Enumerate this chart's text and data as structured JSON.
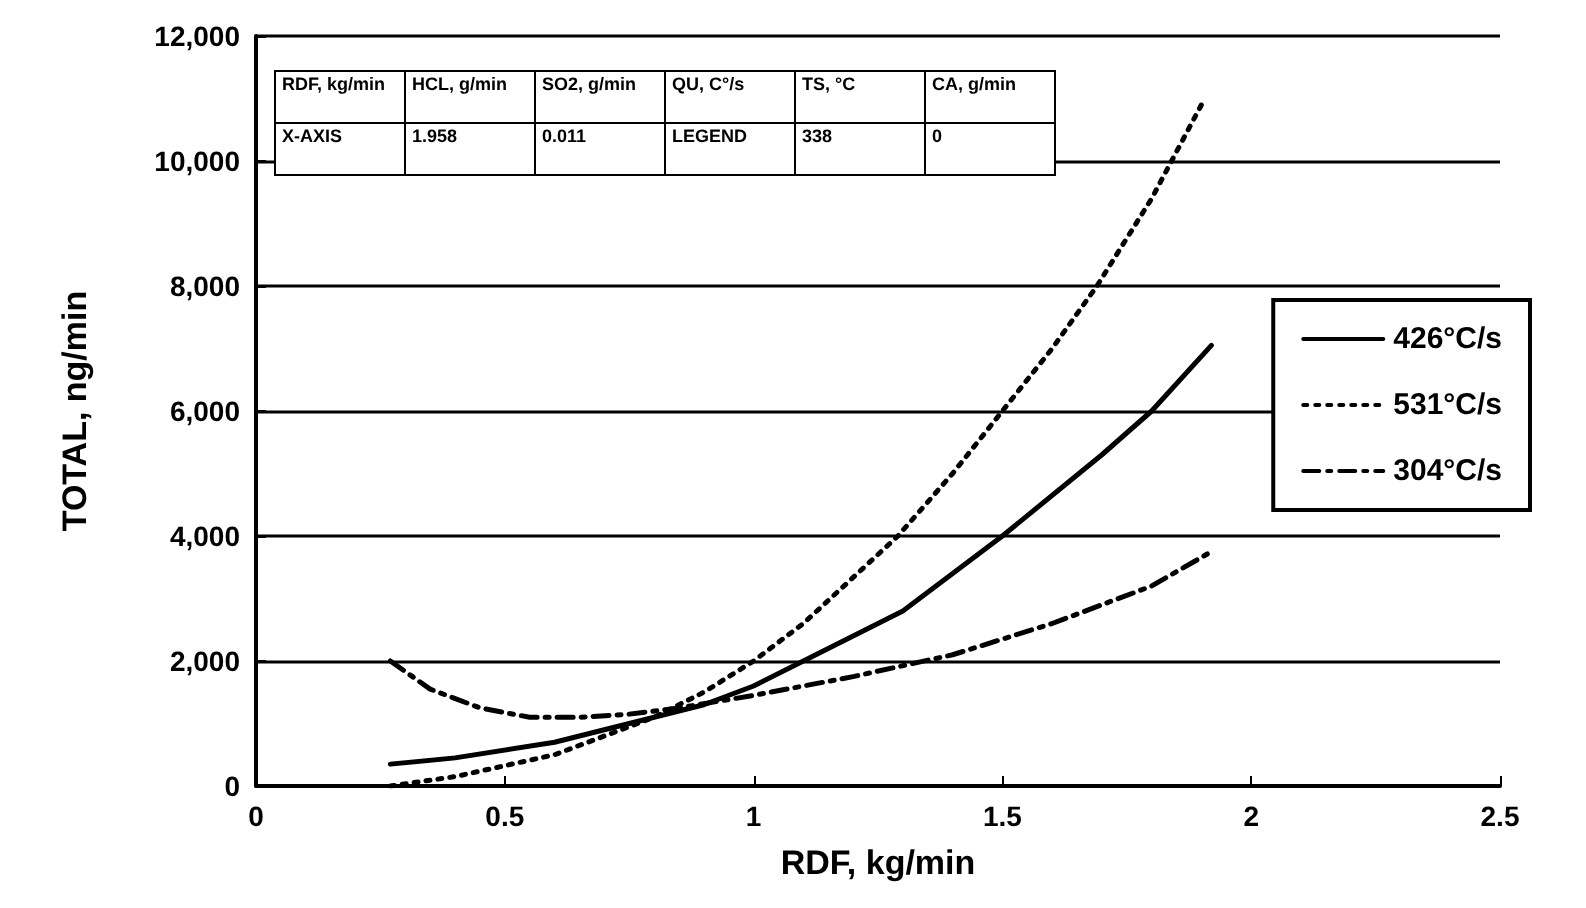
{
  "chart_data": {
    "type": "line",
    "xlabel": "RDF, kg/min",
    "ylabel": "TOTAL, ng/min",
    "xlim": [
      0,
      2.5
    ],
    "xticks": [
      0,
      0.5,
      1,
      1.5,
      2,
      2.5
    ],
    "ylim": [
      0,
      12000
    ],
    "yticks": [
      {
        "value": 0,
        "label": "0"
      },
      {
        "value": 2000,
        "label": "2,000"
      },
      {
        "value": 4000,
        "label": "4,000"
      },
      {
        "value": 6000,
        "label": "6,000"
      },
      {
        "value": 8000,
        "label": "8,000"
      },
      {
        "value": 10000,
        "label": "10,000"
      },
      {
        "value": 12000,
        "label": "12,000"
      }
    ],
    "grid": "y",
    "legend": "right",
    "marker": "none",
    "annotations": [
      "RDF, kg/min",
      "HCL, g/min",
      "SO2, g/min",
      "QU, C°/s",
      "TS, °C",
      "CA, g/min",
      "X-AXIS",
      "1.958",
      "0.011",
      "LEGEND",
      "338",
      "0"
    ],
    "series": [
      {
        "name": "426°C/s",
        "color": "#000000",
        "line_style": "solid",
        "x": [
          0.27,
          0.4,
          0.6,
          0.8,
          0.9,
          1.0,
          1.1,
          1.3,
          1.5,
          1.7,
          1.8,
          1.92
        ],
        "values": [
          350,
          450,
          700,
          1100,
          1300,
          1600,
          2000,
          2800,
          4000,
          5300,
          6000,
          7050
        ]
      },
      {
        "name": "531°C/s",
        "color": "#000000",
        "line_style": "dotted",
        "x": [
          0.27,
          0.4,
          0.6,
          0.8,
          0.9,
          1.0,
          1.1,
          1.29,
          1.4,
          1.5,
          1.6,
          1.69,
          1.8,
          1.9
        ],
        "values": [
          0,
          150,
          500,
          1100,
          1500,
          2000,
          2600,
          4000,
          5000,
          6000,
          7000,
          8000,
          9400,
          10900
        ]
      },
      {
        "name": "304°C/s",
        "color": "#000000",
        "line_style": "dashed",
        "x": [
          0.27,
          0.35,
          0.45,
          0.55,
          0.65,
          0.75,
          0.85,
          1.0,
          1.2,
          1.4,
          1.6,
          1.8,
          1.92
        ],
        "values": [
          2000,
          1550,
          1250,
          1100,
          1100,
          1150,
          1250,
          1450,
          1750,
          2100,
          2600,
          3200,
          3750
        ]
      }
    ]
  }
}
